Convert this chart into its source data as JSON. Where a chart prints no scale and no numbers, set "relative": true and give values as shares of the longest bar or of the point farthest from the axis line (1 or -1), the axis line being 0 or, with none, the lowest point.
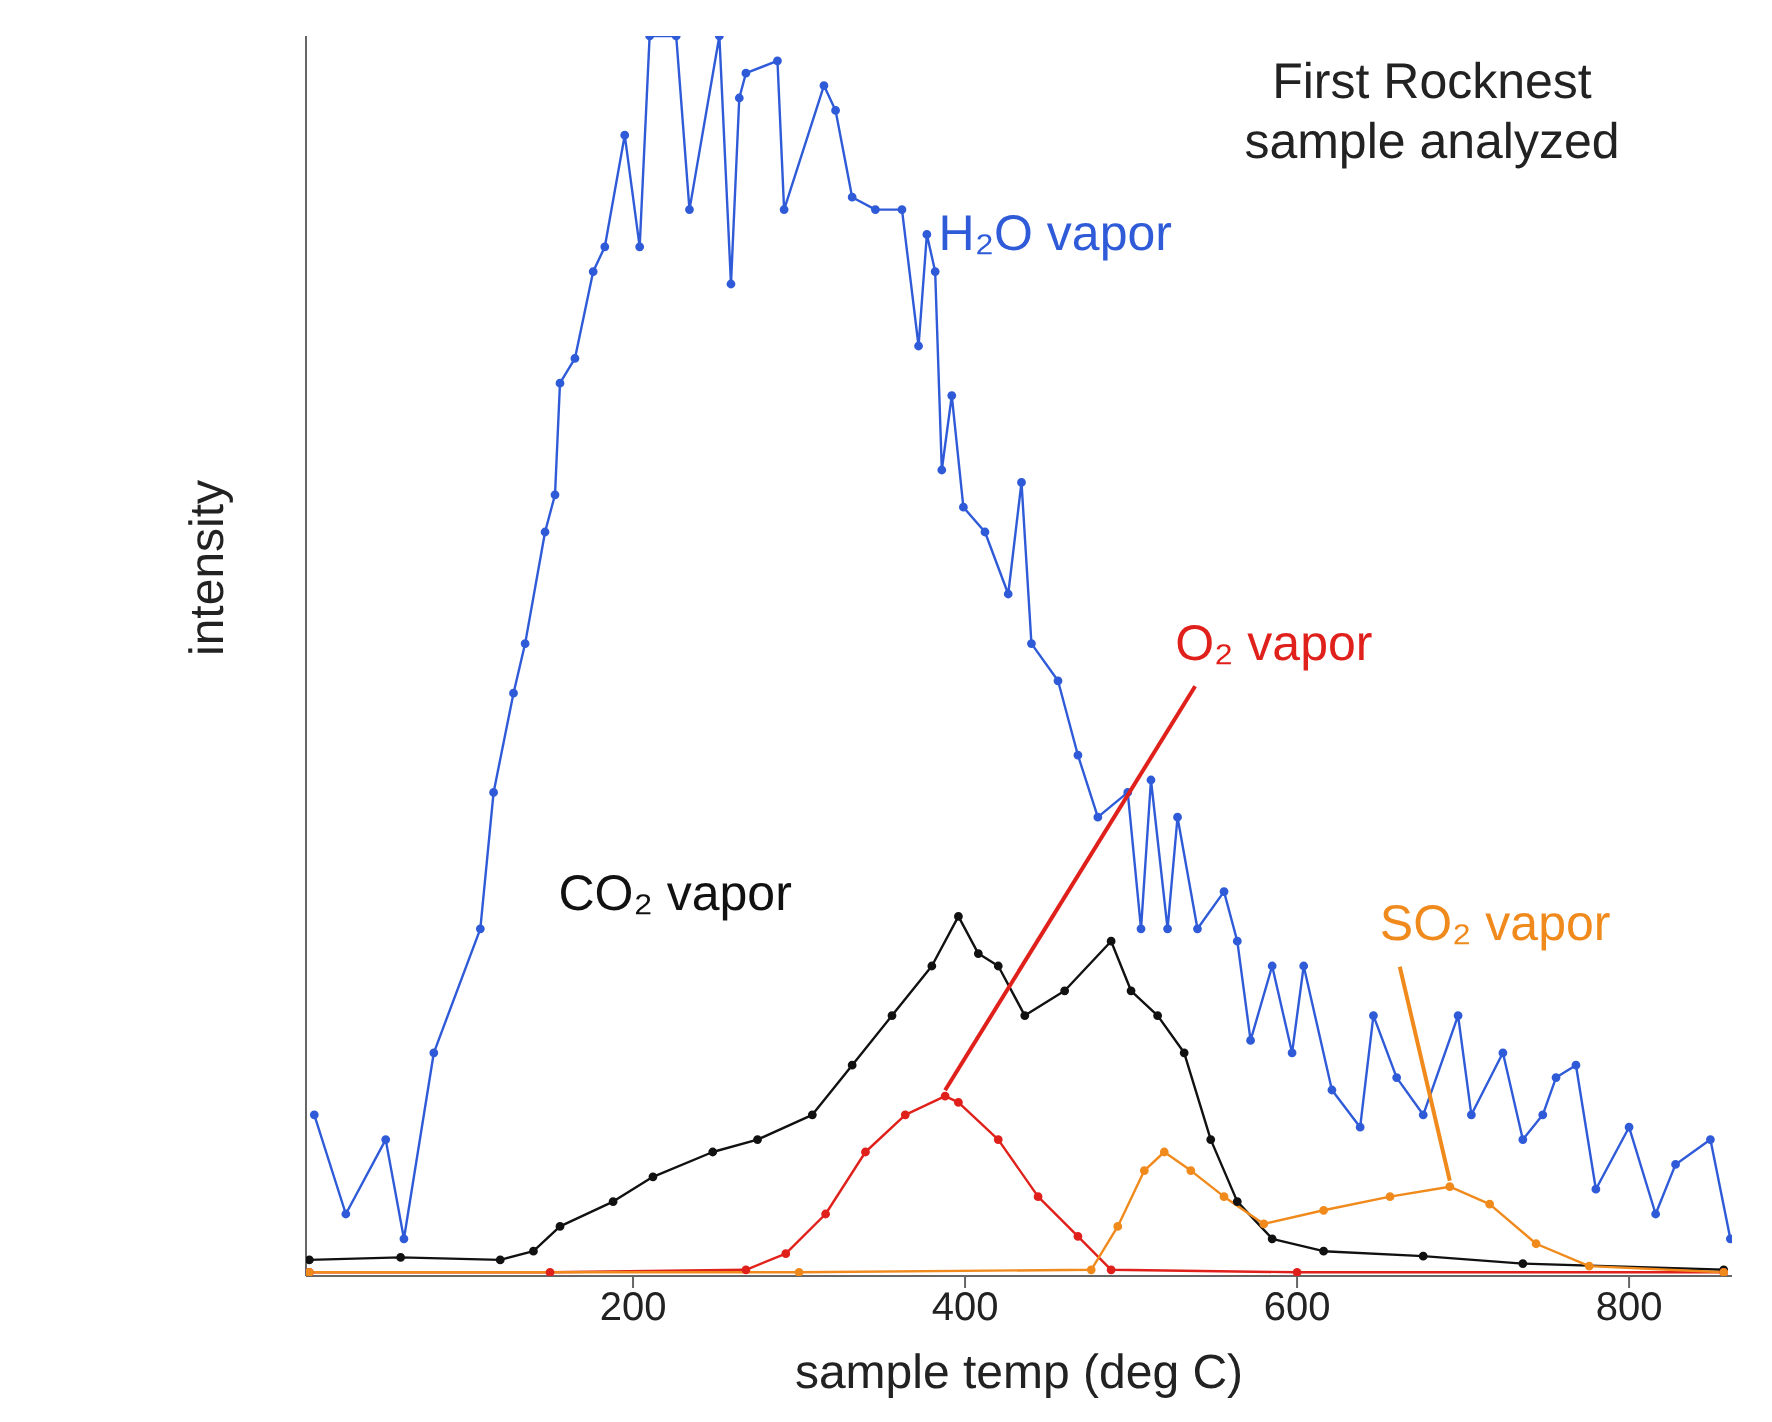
{
  "chart_data": {
    "type": "line",
    "title": "First Rocknest sample analyzed",
    "xlabel": "sample temp (deg C)",
    "ylabel": "intensity",
    "relative": true,
    "xlim": [
      3,
      862
    ],
    "xticks": [
      200,
      400,
      600,
      800
    ],
    "marker": "circle",
    "line_style": "solid",
    "grid": false,
    "series": [
      {
        "name": "H₂O vapor",
        "color": "#2f5bd8",
        "x": [
          8,
          27,
          51,
          62,
          80,
          108,
          116,
          128,
          135,
          147,
          153,
          156,
          165,
          176,
          183,
          195,
          204,
          210,
          226,
          234,
          252,
          259,
          264,
          268,
          287,
          291,
          315,
          322,
          332,
          346,
          362,
          372,
          377,
          382,
          386,
          392,
          399,
          412,
          426,
          434,
          440,
          456,
          468,
          480,
          498,
          506,
          512,
          522,
          528,
          540,
          556,
          564,
          572,
          585,
          597,
          604,
          621,
          638,
          646,
          660,
          676,
          697,
          705,
          724,
          736,
          748,
          756,
          768,
          780,
          800,
          816,
          828,
          849,
          861
        ],
        "values": [
          0.13,
          0.05,
          0.11,
          0.03,
          0.18,
          0.28,
          0.39,
          0.47,
          0.51,
          0.6,
          0.63,
          0.72,
          0.74,
          0.81,
          0.83,
          0.92,
          0.83,
          1,
          1,
          0.86,
          1,
          0.8,
          0.95,
          0.97,
          0.98,
          0.86,
          0.96,
          0.94,
          0.87,
          0.86,
          0.86,
          0.75,
          0.84,
          0.81,
          0.65,
          0.71,
          0.62,
          0.6,
          0.55,
          0.64,
          0.51,
          0.48,
          0.42,
          0.37,
          0.39,
          0.28,
          0.4,
          0.28,
          0.37,
          0.28,
          0.31,
          0.27,
          0.19,
          0.25,
          0.18,
          0.25,
          0.15,
          0.12,
          0.21,
          0.16,
          0.13,
          0.21,
          0.13,
          0.18,
          0.11,
          0.13,
          0.16,
          0.17,
          0.07,
          0.12,
          0.05,
          0.09,
          0.11,
          0.03
        ]
      },
      {
        "name": "CO₂ vapor",
        "color": "#111111",
        "x": [
          5,
          60,
          120,
          140,
          156,
          188,
          212,
          248,
          275,
          308,
          332,
          356,
          380,
          396,
          408,
          420,
          436,
          460,
          488,
          500,
          516,
          532,
          548,
          564,
          585,
          616,
          676,
          736,
          857
        ],
        "values": [
          0.013,
          0.015,
          0.013,
          0.02,
          0.04,
          0.06,
          0.08,
          0.1,
          0.11,
          0.13,
          0.17,
          0.21,
          0.25,
          0.29,
          0.26,
          0.25,
          0.21,
          0.23,
          0.27,
          0.23,
          0.21,
          0.18,
          0.11,
          0.06,
          0.03,
          0.02,
          0.016,
          0.01,
          0.005
        ]
      },
      {
        "name": "O₂ vapor",
        "color": "#e0201b",
        "x": [
          5,
          150,
          268,
          292,
          316,
          340,
          364,
          388,
          396,
          420,
          444,
          468,
          488,
          600,
          857
        ],
        "values": [
          0.003,
          0.003,
          0.005,
          0.018,
          0.05,
          0.1,
          0.13,
          0.145,
          0.14,
          0.11,
          0.064,
          0.032,
          0.005,
          0.003,
          0.003
        ]
      },
      {
        "name": "SO₂ vapor",
        "color": "#f08a1c",
        "x": [
          5,
          300,
          476,
          492,
          508,
          520,
          536,
          556,
          580,
          616,
          656,
          692,
          716,
          744,
          776,
          857
        ],
        "values": [
          0.003,
          0.003,
          0.005,
          0.04,
          0.085,
          0.1,
          0.085,
          0.064,
          0.042,
          0.053,
          0.064,
          0.072,
          0.058,
          0.026,
          0.008,
          0.003
        ]
      }
    ]
  }
}
